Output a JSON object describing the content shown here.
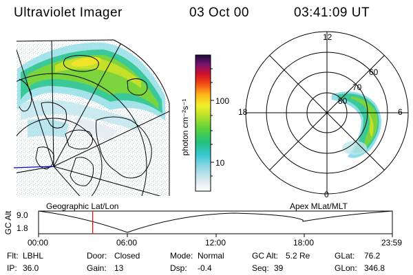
{
  "header": {
    "instrument": "Ultraviolet Imager",
    "date": "03 Oct 00",
    "time": "03:41:09 UT"
  },
  "left_panel": {
    "label": "Geographic Lat/Lon"
  },
  "right_panel": {
    "label": "Apex MLat/MLT",
    "mlt_labels": {
      "top": "12",
      "bottom": "0",
      "left": "18",
      "right": "6"
    },
    "lat_labels": [
      "60",
      "70",
      "80"
    ]
  },
  "colorbar": {
    "unit_label": "photon cm⁻²s⁻¹",
    "ticks": [
      "100",
      "10"
    ]
  },
  "altitude_plot": {
    "ylabel": "GC Alt",
    "y_ticks": [
      "9.0",
      "1.8"
    ],
    "x_ticks": [
      "00:00",
      "06:00",
      "12:00",
      "18:00",
      "23:59"
    ],
    "current_time_fraction": 0.153
  },
  "info": {
    "filter": {
      "label": "Flt:",
      "value": "LBHL"
    },
    "door": {
      "label": "Door:",
      "value": "Closed"
    },
    "mode": {
      "label": "Mode:",
      "value": "Normal"
    },
    "gc_alt": {
      "label": "GC Alt:",
      "value": "5.2 Re"
    },
    "glat": {
      "label": "GLat:",
      "value": "76.2"
    },
    "ip": {
      "label": "IP:",
      "value": "36.0"
    },
    "gain": {
      "label": "Gain:",
      "value": "13"
    },
    "dsp": {
      "label": "Dsp:",
      "value": "-0.4"
    },
    "seq": {
      "label": "Seq:",
      "value": "39"
    },
    "glon": {
      "label": "GLon:",
      "value": "346.8"
    }
  },
  "colors": {
    "background": "#ffffff",
    "line": "#000000",
    "time_marker": "#e00000",
    "meridian": "#0000cc"
  }
}
